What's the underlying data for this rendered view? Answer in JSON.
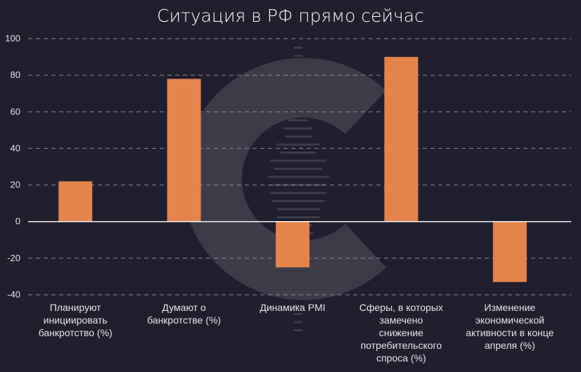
{
  "colors": {
    "background": "#1f1f2e",
    "bar": "#e4844a",
    "grid": "#8c8c99",
    "text": "#e6e6e6"
  },
  "icons": {
    "watermark": "letter-c-logo-watermark"
  },
  "chart_data": {
    "type": "bar",
    "title": "Ситуация в РФ прямо сейчас",
    "xlabel": "",
    "ylabel": "",
    "ylim": [
      -40,
      100
    ],
    "yticks": [
      100,
      80,
      60,
      40,
      20,
      0,
      -20,
      -40
    ],
    "grid": true,
    "categories": [
      [
        "Планируют",
        "инициировать",
        "банкротство (%)"
      ],
      [
        "Думают о",
        "банкротстве (%)"
      ],
      [
        "Динамика PMI"
      ],
      [
        "Сферы, в которых",
        "замечено",
        "снижение",
        "потребительского",
        "спроса (%)"
      ],
      [
        "Изменение",
        "экономической",
        "активности в конце",
        "апреля (%)"
      ]
    ],
    "values": [
      22,
      78,
      -25,
      90,
      -33
    ]
  }
}
